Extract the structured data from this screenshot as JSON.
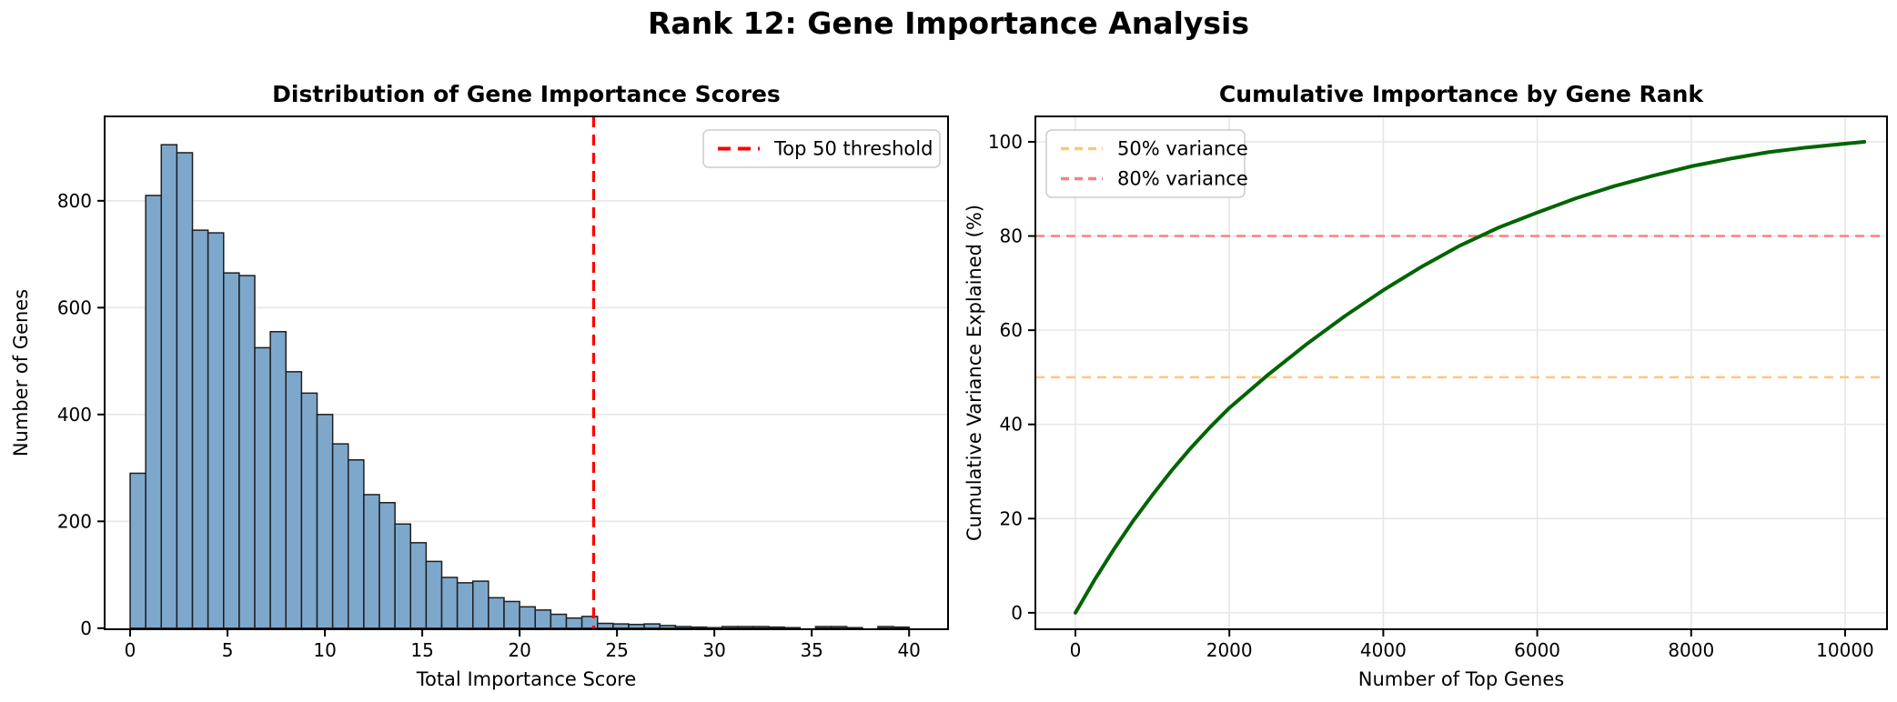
{
  "figure": {
    "title": "Rank 12: Gene Importance Analysis",
    "background": "#ffffff"
  },
  "chart_data": [
    {
      "type": "bar",
      "title": "Distribution of Gene Importance Scores",
      "xlabel": "Total Importance Score",
      "ylabel": "Number of Genes",
      "bin_start": 0,
      "bin_width": 0.8,
      "values": [
        290,
        810,
        905,
        890,
        745,
        740,
        665,
        660,
        525,
        555,
        480,
        440,
        400,
        345,
        315,
        250,
        235,
        195,
        160,
        125,
        95,
        85,
        88,
        57,
        50,
        40,
        34,
        26,
        19,
        22,
        9,
        8,
        7,
        8,
        5,
        3,
        2,
        1,
        3,
        3,
        3,
        2,
        1,
        0,
        3,
        3,
        1,
        0,
        3,
        2
      ],
      "xticks": [
        0,
        5,
        10,
        15,
        20,
        25,
        30,
        35,
        40
      ],
      "yticks": [
        0,
        200,
        400,
        600,
        800
      ],
      "xlim": [
        -1.31,
        42.0
      ],
      "ylim": [
        -2,
        958
      ],
      "grid": "y",
      "bar_color": "#7EA8CB",
      "bar_edge": "#1f1f1f",
      "vline": {
        "x": 23.8,
        "color": "#FF0000",
        "label": "Top 50 threshold"
      },
      "legend": {
        "position": "top-right",
        "entries": [
          {
            "label": "Top 50 threshold",
            "color": "#FF0000",
            "dash": "14 8",
            "width": 4
          }
        ]
      }
    },
    {
      "type": "line",
      "title": "Cumulative Importance by Gene Rank",
      "xlabel": "Number of Top Genes",
      "ylabel": "Cumulative Variance Explained (%)",
      "x": [
        0,
        250,
        500,
        750,
        1000,
        1250,
        1500,
        1750,
        2000,
        2500,
        3000,
        3500,
        4000,
        4500,
        5000,
        5500,
        6000,
        6500,
        7000,
        7500,
        8000,
        8500,
        9000,
        9500,
        10000,
        10250
      ],
      "y": [
        0,
        7,
        13.5,
        19.5,
        25,
        30.2,
        35,
        39.4,
        43.5,
        50.5,
        57,
        63,
        68.5,
        73.5,
        78,
        81.8,
        85,
        88,
        90.6,
        92.8,
        94.8,
        96.4,
        97.8,
        98.8,
        99.6,
        100
      ],
      "xticks": [
        0,
        2000,
        4000,
        6000,
        8000,
        10000
      ],
      "yticks": [
        0,
        20,
        40,
        60,
        80,
        100
      ],
      "xlim": [
        -520,
        10544
      ],
      "ylim": [
        -3.5,
        105.4
      ],
      "grid": "both",
      "line_color": "#006400",
      "line_width": 4,
      "hlines": [
        {
          "y": 50,
          "color": "#FBC878",
          "label": "50% variance",
          "dash": "10 7",
          "width": 2.5
        },
        {
          "y": 80,
          "color": "#F88080",
          "label": "80% variance",
          "dash": "10 7",
          "width": 2.5
        }
      ],
      "legend": {
        "position": "top-left"
      }
    }
  ],
  "style": {
    "grid_color": "#E7E7E7",
    "spine_color": "#000000",
    "legend_border": "#cccccc",
    "legend_bg": "#ffffff"
  }
}
